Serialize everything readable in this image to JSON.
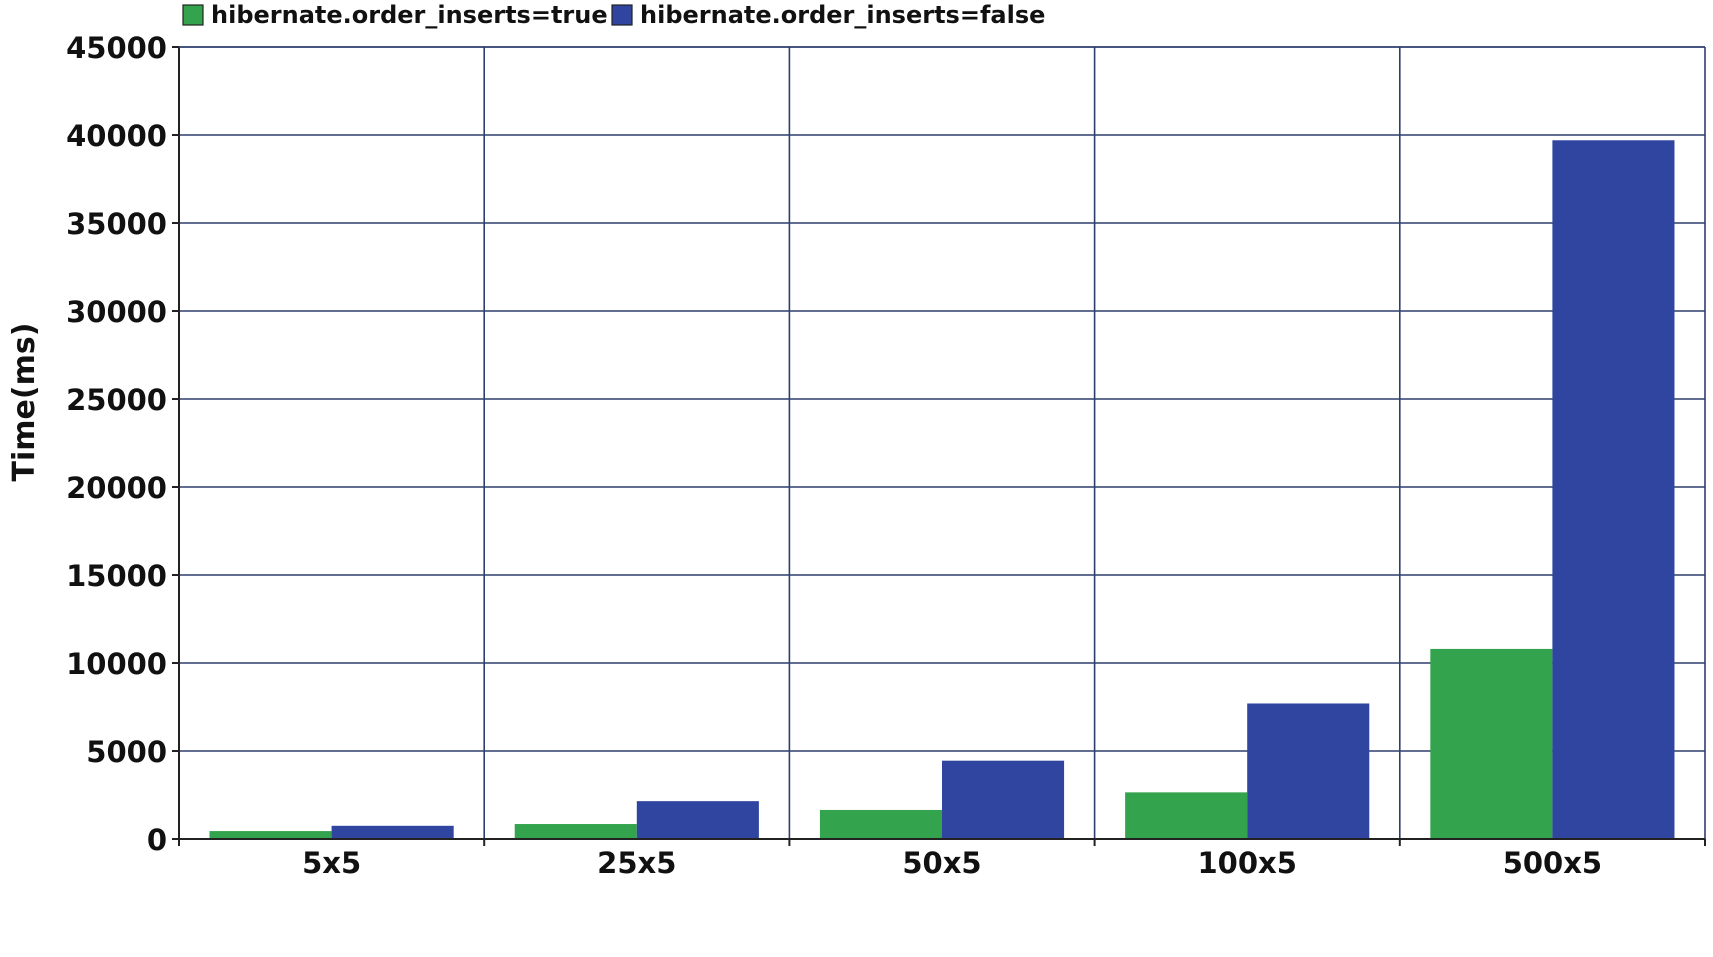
{
  "chart_data": {
    "type": "bar",
    "title": "",
    "xlabel": "",
    "ylabel": "Time(ms)",
    "ylim": [
      0,
      45000
    ],
    "yticks": [
      0,
      5000,
      10000,
      15000,
      20000,
      25000,
      30000,
      35000,
      40000,
      45000
    ],
    "grid": true,
    "legend_position": "top-left",
    "categories": [
      "5x5",
      "25x5",
      "50x5",
      "100x5",
      "500x5"
    ],
    "series": [
      {
        "name": "hibernate.order_inserts=true",
        "color": "#33a34d",
        "values": [
          450,
          850,
          1650,
          2650,
          10800
        ]
      },
      {
        "name": "hibernate.order_inserts=false",
        "color": "#2f45a0",
        "values": [
          750,
          2150,
          4450,
          7700,
          39700
        ]
      }
    ]
  }
}
